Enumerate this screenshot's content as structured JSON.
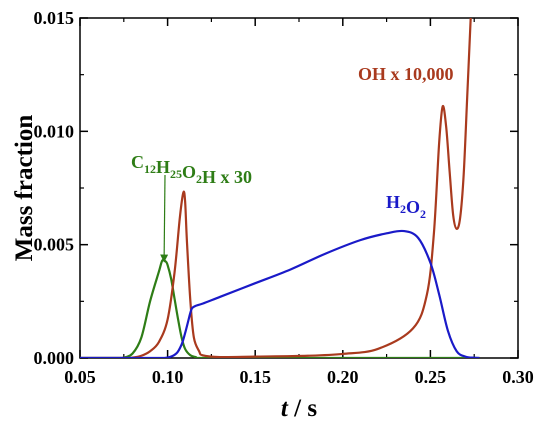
{
  "chart_data": {
    "type": "line",
    "xlabel": "t / s",
    "ylabel": "Mass fraction",
    "xlim": [
      0.05,
      0.3
    ],
    "ylim": [
      0.0,
      0.015
    ],
    "x_ticks": [
      0.05,
      0.1,
      0.15,
      0.2,
      0.25,
      0.3
    ],
    "x_tick_labels": [
      "0.05",
      "0.10",
      "0.15",
      "0.20",
      "0.25",
      "0.30"
    ],
    "y_ticks": [
      0.0,
      0.005,
      0.01,
      0.015
    ],
    "y_tick_labels": [
      "0.000",
      "0.005",
      "0.010",
      "0.015"
    ],
    "grid": false,
    "legend": "none",
    "series": [
      {
        "name": "C12H25O2H x 30",
        "color": "#2e7d16",
        "x": [
          0.05,
          0.07,
          0.075,
          0.08,
          0.085,
          0.09,
          0.095,
          0.097,
          0.099,
          0.1,
          0.102,
          0.104,
          0.106,
          0.108,
          0.11,
          0.113,
          0.116,
          0.12,
          0.15,
          0.2,
          0.25,
          0.278
        ],
        "y": [
          0.0,
          0.0,
          2e-05,
          0.0002,
          0.0009,
          0.0025,
          0.0038,
          0.0043,
          0.00425,
          0.0041,
          0.0035,
          0.0026,
          0.0017,
          0.0009,
          0.0004,
          0.00012,
          4e-05,
          0.0,
          0.0,
          0.0,
          0.0,
          0.0
        ]
      },
      {
        "name": "OH x 10,000",
        "color": "#a93a1e",
        "x": [
          0.05,
          0.075,
          0.08,
          0.085,
          0.09,
          0.095,
          0.1,
          0.104,
          0.107,
          0.109,
          0.11,
          0.111,
          0.113,
          0.115,
          0.118,
          0.12,
          0.13,
          0.15,
          0.18,
          0.2,
          0.22,
          0.24,
          0.248,
          0.252,
          0.255,
          0.257,
          0.259,
          0.261,
          0.263,
          0.265,
          0.267,
          0.269,
          0.271,
          0.273
        ],
        "y": [
          0.0,
          0.0,
          2e-05,
          0.0001,
          0.0003,
          0.0007,
          0.0017,
          0.0038,
          0.0062,
          0.0073,
          0.0069,
          0.0052,
          0.0025,
          0.0009,
          0.0003,
          0.00012,
          4e-05,
          6e-05,
          0.0001,
          0.00018,
          0.0004,
          0.0013,
          0.0028,
          0.0055,
          0.0095,
          0.0111,
          0.0102,
          0.0082,
          0.0063,
          0.0057,
          0.0062,
          0.0081,
          0.0115,
          0.015
        ]
      },
      {
        "name": "H2O2",
        "color": "#1a1ac8",
        "x": [
          0.05,
          0.09,
          0.1,
          0.105,
          0.108,
          0.11,
          0.112,
          0.113,
          0.114,
          0.116,
          0.12,
          0.13,
          0.15,
          0.17,
          0.19,
          0.21,
          0.225,
          0.235,
          0.243,
          0.25,
          0.255,
          0.26,
          0.265,
          0.27,
          0.275,
          0.278
        ],
        "y": [
          0.0,
          0.0,
          2e-05,
          0.0002,
          0.0006,
          0.0011,
          0.0017,
          0.002,
          0.0022,
          0.0023,
          0.0024,
          0.0027,
          0.0033,
          0.0039,
          0.0046,
          0.0052,
          0.0055,
          0.0056,
          0.0053,
          0.0042,
          0.0028,
          0.0012,
          0.0003,
          6e-05,
          1e-05,
          0.0
        ]
      }
    ],
    "annotations": [
      {
        "name": "OH x 10,000",
        "color": "#a93a1e",
        "label": {
          "text": "OH x 10,000"
        }
      },
      {
        "name": "H2O2",
        "color": "#1a1ac8",
        "label": {
          "parts": [
            {
              "t": "H"
            },
            {
              "t": "2",
              "sub": true
            },
            {
              "t": "O"
            },
            {
              "t": "2",
              "sub": true
            }
          ]
        }
      },
      {
        "name": "C12H25O2H x 30",
        "color": "#2e7d16",
        "label": {
          "parts": [
            {
              "t": "C"
            },
            {
              "t": "12",
              "sub": true
            },
            {
              "t": "H"
            },
            {
              "t": "25",
              "sub": true
            },
            {
              "t": "O"
            },
            {
              "t": "2",
              "sub": true
            },
            {
              "t": "H x 30"
            }
          ]
        },
        "arrow_to": [
          0.098,
          0.0043
        ]
      }
    ]
  }
}
